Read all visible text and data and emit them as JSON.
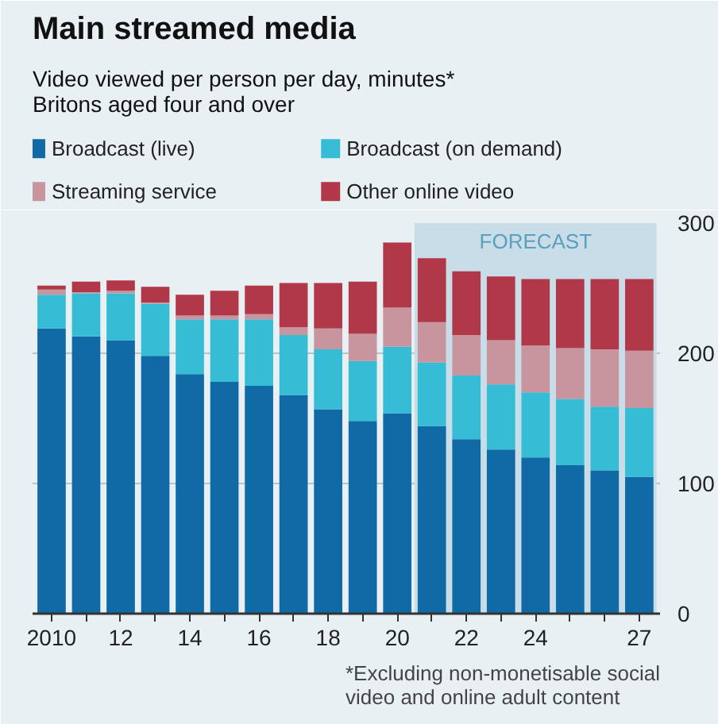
{
  "chart_data": {
    "type": "bar",
    "stacked": true,
    "title": "Main streamed media",
    "subtitle": "Video viewed per person per day, minutes*\nBritons aged four and over",
    "x": [
      2010,
      2011,
      2012,
      2013,
      2014,
      2015,
      2016,
      2017,
      2018,
      2019,
      2020,
      2021,
      2022,
      2023,
      2024,
      2025,
      2026,
      2027
    ],
    "series": [
      {
        "name": "Broadcast (live)",
        "color": "#0f6aa5",
        "values": [
          219,
          213,
          210,
          198,
          184,
          178,
          175,
          168,
          157,
          148,
          154,
          144,
          134,
          126,
          120,
          114,
          110,
          105
        ]
      },
      {
        "name": "Broadcast (on demand)",
        "color": "#36bcd4",
        "values": [
          26,
          33,
          36,
          40,
          42,
          48,
          51,
          46,
          46,
          46,
          51,
          49,
          49,
          50,
          50,
          51,
          49,
          53
        ]
      },
      {
        "name": "Streaming service",
        "color": "#c8959e",
        "values": [
          4,
          1,
          2,
          1,
          3,
          3,
          4,
          6,
          16,
          21,
          30,
          31,
          31,
          34,
          36,
          39,
          44,
          44
        ]
      },
      {
        "name": "Other online video",
        "color": "#b13849",
        "values": [
          3,
          8,
          8,
          12,
          16,
          19,
          22,
          34,
          35,
          40,
          50,
          49,
          49,
          49,
          51,
          53,
          54,
          55
        ]
      }
    ],
    "ylim": [
      0,
      300
    ],
    "yticks": [
      0,
      100,
      200,
      300
    ],
    "xlim": [
      2009.45,
      2027.6
    ],
    "xticks": [
      {
        "value": 2010,
        "label": "2010"
      },
      {
        "value": 2011,
        "label": null
      },
      {
        "value": 2012,
        "label": "12"
      },
      {
        "value": 2013,
        "label": null
      },
      {
        "value": 2014,
        "label": "14"
      },
      {
        "value": 2015,
        "label": null
      },
      {
        "value": 2016,
        "label": "16"
      },
      {
        "value": 2017,
        "label": null
      },
      {
        "value": 2018,
        "label": "18"
      },
      {
        "value": 2019,
        "label": null
      },
      {
        "value": 2020,
        "label": "20"
      },
      {
        "value": 2021,
        "label": null
      },
      {
        "value": 2022,
        "label": "22"
      },
      {
        "value": 2023,
        "label": null
      },
      {
        "value": 2024,
        "label": "24"
      },
      {
        "value": 2025,
        "label": null
      },
      {
        "value": 2026,
        "label": null
      },
      {
        "value": 2027,
        "label": "27"
      }
    ],
    "bands": [
      {
        "axis": "x",
        "from": 2020.5,
        "to": 2027.5,
        "label": "FORECAST",
        "color": "#c9dde8"
      }
    ],
    "grid": "y",
    "legend": "top",
    "annotations": [
      "*Excluding non-monetisable social\nvideo and online adult content"
    ]
  }
}
